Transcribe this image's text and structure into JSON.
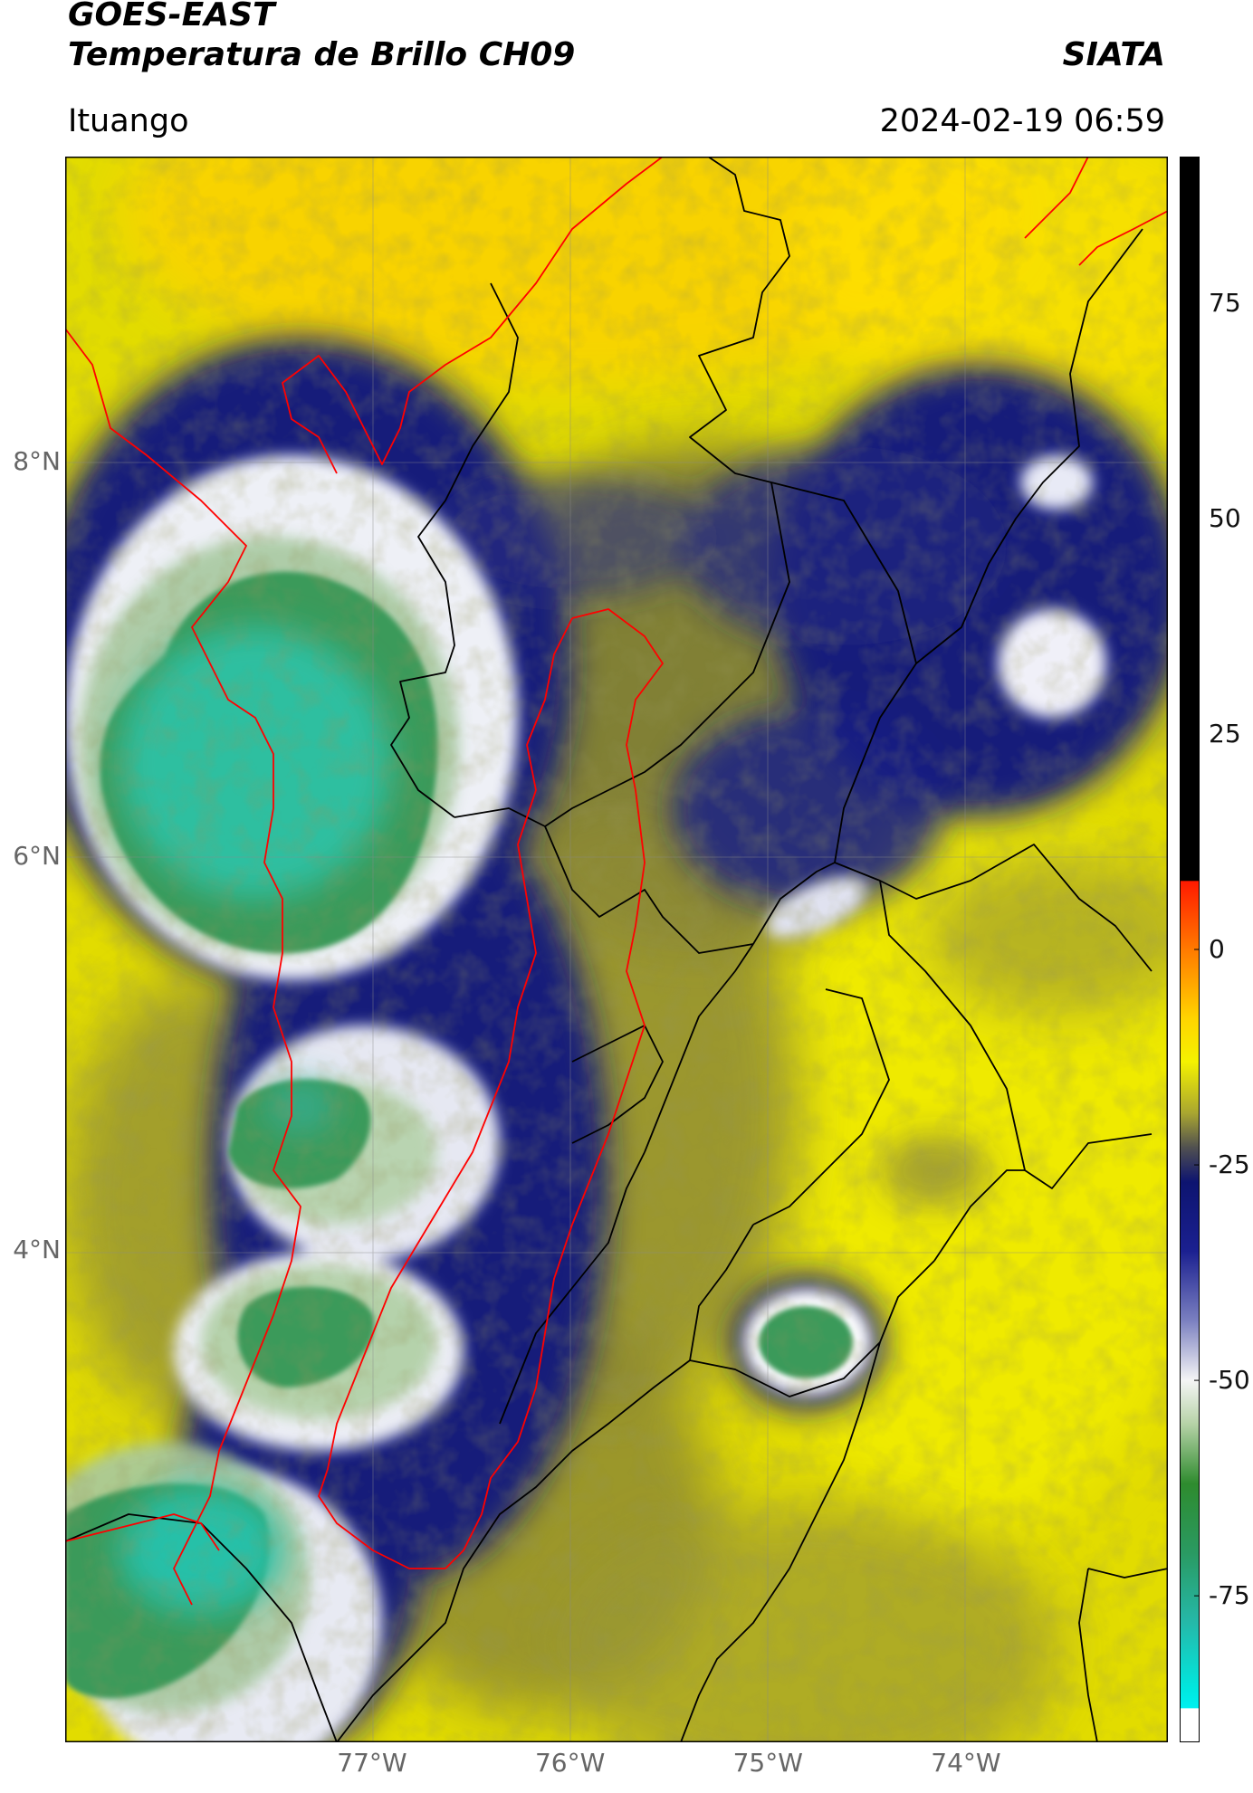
{
  "header": {
    "satellite": "GOES-EAST",
    "product": "Temperatura de Brillo CH09",
    "organization": "SIATA",
    "location": "Ituango",
    "timestamp": "2024-02-19 06:59"
  },
  "axes": {
    "lat_labels": [
      "8°N",
      "6°N",
      "4°N"
    ],
    "lon_labels": [
      "77°W",
      "76°W",
      "75°W",
      "74°W"
    ],
    "lat_values": [
      8,
      6,
      4
    ],
    "lon_values": [
      -77,
      -76,
      -75,
      -74
    ],
    "lon_range": [
      -78.55,
      -72.98
    ],
    "lat_range": [
      9.55,
      1.5
    ]
  },
  "colorbar": {
    "ticks": [
      "75",
      "50",
      "25",
      "0",
      "-25",
      "-50",
      "-75"
    ],
    "tick_values": [
      75,
      50,
      25,
      0,
      -25,
      -50,
      -75
    ],
    "range": [
      -92,
      92
    ],
    "stops": [
      {
        "v": 92,
        "c": "#000000"
      },
      {
        "v": 8,
        "c": "#000000"
      },
      {
        "v": 7.9,
        "c": "#ff1a00"
      },
      {
        "v": 0,
        "c": "#ff7a00"
      },
      {
        "v": -8,
        "c": "#ffd400"
      },
      {
        "v": -13,
        "c": "#f5f200"
      },
      {
        "v": -19,
        "c": "#a9a630"
      },
      {
        "v": -23,
        "c": "#505050"
      },
      {
        "v": -27,
        "c": "#0d1470"
      },
      {
        "v": -35,
        "c": "#1b2090"
      },
      {
        "v": -43,
        "c": "#7a7fc0"
      },
      {
        "v": -50,
        "c": "#f5f5f5"
      },
      {
        "v": -55,
        "c": "#b7d3a8"
      },
      {
        "v": -62,
        "c": "#2e8b2e"
      },
      {
        "v": -70,
        "c": "#2a9a62"
      },
      {
        "v": -78,
        "c": "#25b8a8"
      },
      {
        "v": -86,
        "c": "#00e8e0"
      },
      {
        "v": -88,
        "c": "#00f0f0"
      },
      {
        "v": -88.1,
        "c": "#ffffff"
      },
      {
        "v": -92,
        "c": "#ffffff"
      }
    ]
  },
  "colors": {
    "base_yellow": "#e6e000",
    "deep_blue": "#141a7a",
    "cold_white": "#f0f0f4",
    "cold_green": "#3a9a5a",
    "coldest_teal": "#2fbfa0",
    "dark_olive": "#8a8a3a",
    "boundary_black": "#000000",
    "boundary_red": "#ff0000"
  }
}
